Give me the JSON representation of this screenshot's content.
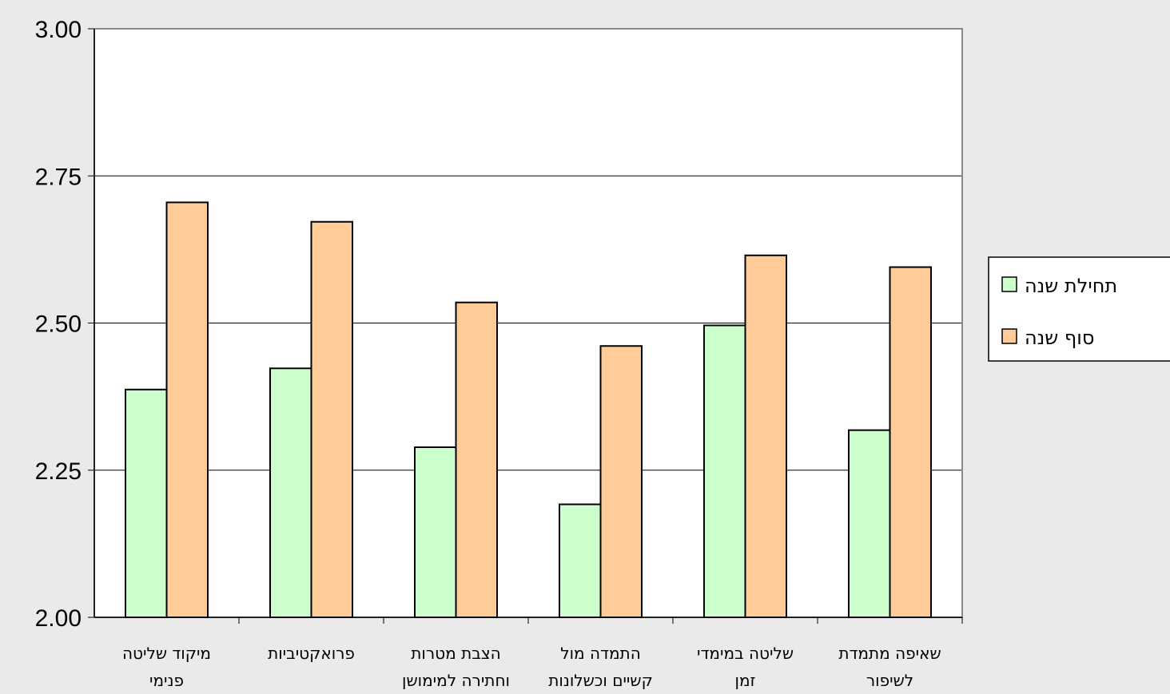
{
  "chart_data": {
    "type": "bar",
    "title": "",
    "xlabel": "",
    "ylabel": "",
    "ylim": [
      2.0,
      3.0
    ],
    "yticks": [
      "2.00",
      "2.25",
      "2.50",
      "2.75",
      "3.00"
    ],
    "grid": true,
    "legend_position": "right",
    "categories": [
      [
        "מיקוד שליטה",
        "פנימי"
      ],
      [
        "פרואקטיביות"
      ],
      [
        "הצבת מטרות",
        "וחתירה למימושן"
      ],
      [
        "התמדה מול",
        "קשיים וכשלונות"
      ],
      [
        "שליטה במימדי",
        "זמן"
      ],
      [
        "שאיפה מתמדת",
        "לשיפור"
      ]
    ],
    "series": [
      {
        "name": "תחילת שנה",
        "color": "#ccffcc",
        "values": [
          2.387,
          2.423,
          2.289,
          2.192,
          2.496,
          2.318
        ]
      },
      {
        "name": "סוף שנה",
        "color": "#ffcc99",
        "values": [
          2.705,
          2.672,
          2.535,
          2.461,
          2.615,
          2.595
        ]
      }
    ]
  }
}
